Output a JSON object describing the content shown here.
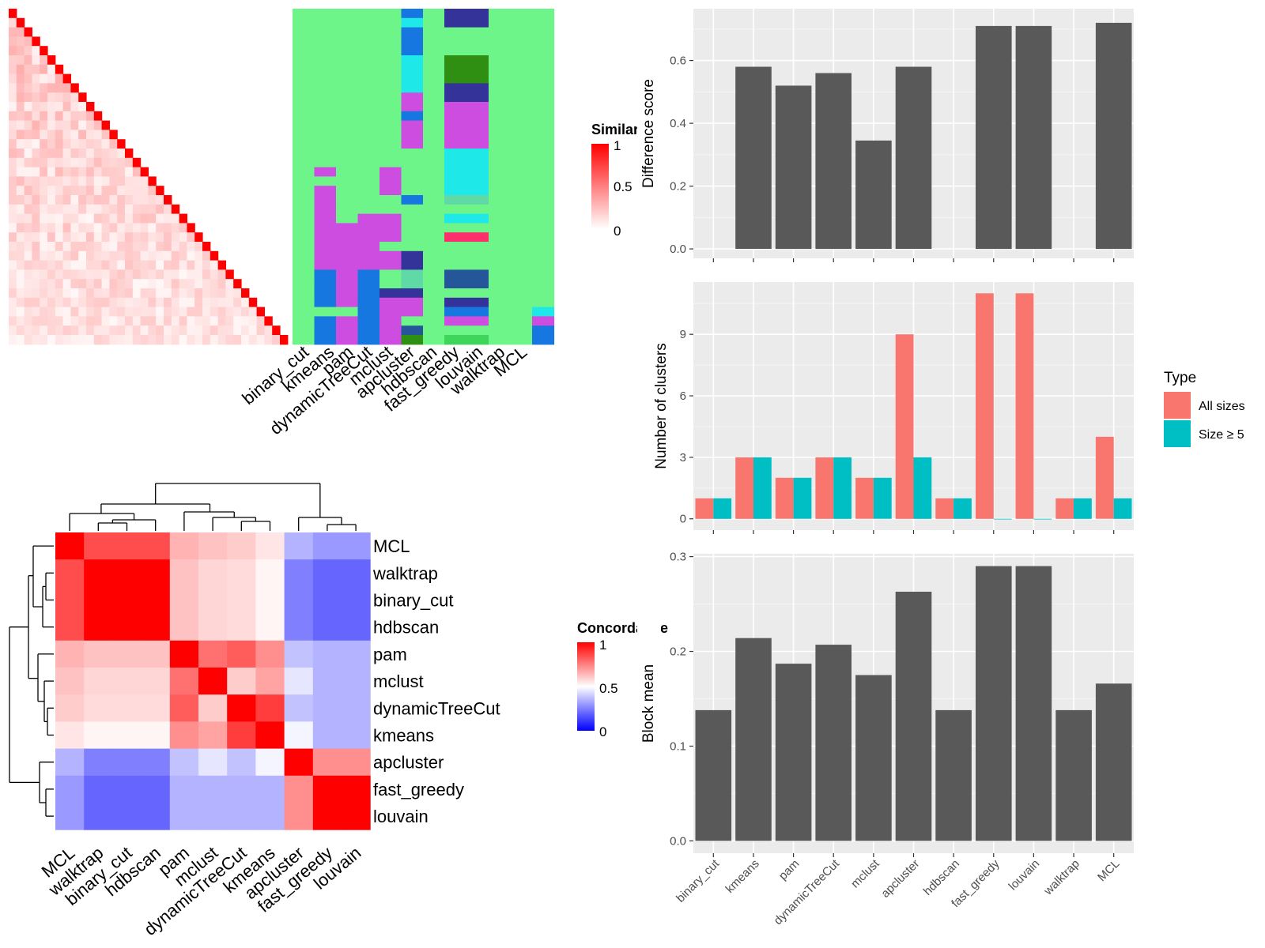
{
  "colors": {
    "panel_bg": "#ebebeb",
    "grid": "#ffffff",
    "bar": "#595959",
    "all_sizes": "#f8766d",
    "size_ge5": "#00bfc4",
    "cluster_palette": [
      "#6ef58a",
      "#1677e0",
      "#1ee8e8",
      "#cc4de0",
      "#2f8f12",
      "#26569a",
      "#333399",
      "#ff2e6d",
      "#3ed65a",
      "#2e4f8c",
      "#5fd9a6"
    ]
  },
  "chart_data": [
    {
      "id": "similarity_heatmap",
      "type": "heatmap",
      "legend_title": "Similarity",
      "legend_ticks": [
        "1",
        "0.5",
        "0"
      ],
      "n": 36,
      "note": "lower-triangle similarity matrix with diagonal = 1",
      "column_labels": [
        "binary_cut",
        "kmeans",
        "pam",
        "dynamicTreeCut",
        "mclust",
        "apcluster",
        "hdbscan",
        "fast_greedy",
        "louvain",
        "walktrap",
        "MCL"
      ]
    },
    {
      "id": "concordance_heatmap",
      "type": "heatmap",
      "legend_title": "Concordance",
      "legend_ticks": [
        "1",
        "0.5",
        "0"
      ],
      "rows": [
        "MCL",
        "walktrap",
        "binary_cut",
        "hdbscan",
        "pam",
        "mclust",
        "dynamicTreeCut",
        "kmeans",
        "apcluster",
        "fast_greedy",
        "louvain"
      ],
      "cols": [
        "MCL",
        "walktrap",
        "binary_cut",
        "hdbscan",
        "pam",
        "mclust",
        "dynamicTreeCut",
        "kmeans",
        "apcluster",
        "fast_greedy",
        "louvain"
      ],
      "values": [
        [
          1.0,
          0.85,
          0.85,
          0.85,
          0.65,
          0.62,
          0.6,
          0.55,
          0.35,
          0.3,
          0.3
        ],
        [
          0.85,
          1.0,
          1.0,
          1.0,
          0.62,
          0.58,
          0.57,
          0.52,
          0.25,
          0.2,
          0.2
        ],
        [
          0.85,
          1.0,
          1.0,
          1.0,
          0.62,
          0.58,
          0.57,
          0.52,
          0.25,
          0.2,
          0.2
        ],
        [
          0.85,
          1.0,
          1.0,
          1.0,
          0.62,
          0.58,
          0.57,
          0.52,
          0.25,
          0.2,
          0.2
        ],
        [
          0.65,
          0.62,
          0.62,
          0.62,
          1.0,
          0.78,
          0.82,
          0.72,
          0.38,
          0.35,
          0.35
        ],
        [
          0.62,
          0.58,
          0.58,
          0.58,
          0.78,
          1.0,
          0.6,
          0.68,
          0.45,
          0.35,
          0.35
        ],
        [
          0.6,
          0.57,
          0.57,
          0.57,
          0.82,
          0.6,
          1.0,
          0.88,
          0.38,
          0.35,
          0.35
        ],
        [
          0.55,
          0.52,
          0.52,
          0.52,
          0.72,
          0.68,
          0.88,
          1.0,
          0.48,
          0.35,
          0.35
        ],
        [
          0.35,
          0.25,
          0.25,
          0.25,
          0.38,
          0.45,
          0.38,
          0.48,
          1.0,
          0.72,
          0.72
        ],
        [
          0.3,
          0.2,
          0.2,
          0.2,
          0.35,
          0.35,
          0.35,
          0.35,
          0.72,
          1.0,
          1.0
        ],
        [
          0.3,
          0.2,
          0.2,
          0.2,
          0.35,
          0.35,
          0.35,
          0.35,
          0.72,
          1.0,
          1.0
        ]
      ]
    },
    {
      "id": "difference_score",
      "type": "bar",
      "ylabel": "Difference score",
      "categories": [
        "binary_cut",
        "kmeans",
        "pam",
        "dynamicTreeCut",
        "mclust",
        "apcluster",
        "hdbscan",
        "fast_greedy",
        "louvain",
        "walktrap",
        "MCL"
      ],
      "values": [
        0,
        0.58,
        0.52,
        0.56,
        0.345,
        0.58,
        0,
        0.71,
        0.71,
        0,
        0.72
      ],
      "ylim": [
        -0.03,
        0.765
      ],
      "yticks": [
        0.0,
        0.2,
        0.4,
        0.6
      ],
      "ytick_labels": [
        "0.0",
        "0.2",
        "0.4",
        "0.6"
      ]
    },
    {
      "id": "number_of_clusters",
      "type": "bar",
      "ylabel": "Number of clusters",
      "legend_title": "Type",
      "categories": [
        "binary_cut",
        "kmeans",
        "pam",
        "dynamicTreeCut",
        "mclust",
        "apcluster",
        "hdbscan",
        "fast_greedy",
        "louvain",
        "walktrap",
        "MCL"
      ],
      "series": [
        {
          "name": "All sizes",
          "values": [
            1,
            3,
            2,
            3,
            2,
            9,
            1,
            11,
            11,
            1,
            4
          ]
        },
        {
          "name": "Size ≥ 5",
          "values": [
            1,
            3,
            2,
            3,
            2,
            3,
            1,
            0,
            0,
            1,
            1
          ]
        }
      ],
      "ylim": [
        -0.55,
        11.55
      ],
      "yticks": [
        0,
        3,
        6,
        9
      ],
      "ytick_labels": [
        "0",
        "3",
        "6",
        "9"
      ]
    },
    {
      "id": "block_mean",
      "type": "bar",
      "ylabel": "Block mean",
      "categories": [
        "binary_cut",
        "kmeans",
        "pam",
        "dynamicTreeCut",
        "mclust",
        "apcluster",
        "hdbscan",
        "fast_greedy",
        "louvain",
        "walktrap",
        "MCL"
      ],
      "values": [
        0.138,
        0.214,
        0.187,
        0.207,
        0.175,
        0.263,
        0.138,
        0.29,
        0.29,
        0.138,
        0.166
      ],
      "ylim": [
        -0.013,
        0.303
      ],
      "yticks": [
        0.0,
        0.1,
        0.2,
        0.3
      ],
      "ytick_labels": [
        "0.0",
        "0.1",
        "0.2",
        "0.3"
      ]
    }
  ]
}
